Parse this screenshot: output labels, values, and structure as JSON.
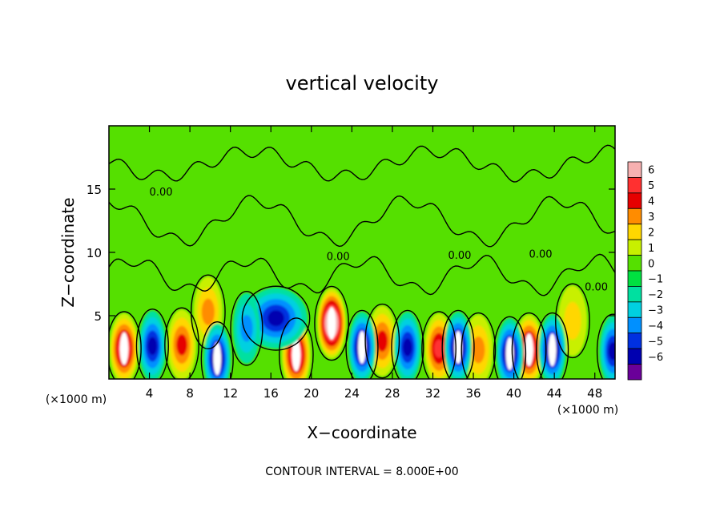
{
  "chart_data": {
    "type": "heatmap",
    "title": "vertical velocity",
    "xlabel": "X−coordinate",
    "ylabel": "Z−coordinate",
    "x_units": "(×1000 m)",
    "y_units": "(×1000 m)",
    "xlim": [
      0,
      50
    ],
    "ylim": [
      0,
      20
    ],
    "x_ticks": [
      "4",
      "8",
      "12",
      "16",
      "20",
      "24",
      "28",
      "32",
      "36",
      "40",
      "44",
      "48"
    ],
    "y_ticks": [
      "5",
      "10",
      "15"
    ],
    "colorbar": {
      "ticks": [
        "6",
        "5",
        "4",
        "3",
        "2",
        "1",
        "0",
        "−1",
        "−2",
        "−3",
        "−4",
        "−5",
        "−6"
      ],
      "range": [
        -6,
        6
      ],
      "colors": [
        "#f7b0b0",
        "#ff3030",
        "#e60000",
        "#ff8c00",
        "#ffd700",
        "#c8f000",
        "#55e000",
        "#00e040",
        "#00e0a0",
        "#00d0e0",
        "#0090ff",
        "#0030e0",
        "#0000b0",
        "#6a0099"
      ]
    },
    "contour_label": "0.00",
    "footnote": "CONTOUR INTERVAL = 8.000E+00",
    "features": [
      {
        "kind": "updraft",
        "x": 1.5,
        "z": 2.4,
        "peak": 6
      },
      {
        "kind": "updraft",
        "x": 7.2,
        "z": 2.7,
        "peak": 4
      },
      {
        "kind": "updraft",
        "x": 9.8,
        "z": 5.3,
        "peak": 3
      },
      {
        "kind": "updraft",
        "x": 18.5,
        "z": 1.9,
        "peak": 6
      },
      {
        "kind": "updraft",
        "x": 22.0,
        "z": 4.4,
        "peak": 8
      },
      {
        "kind": "updraft",
        "x": 27.0,
        "z": 3.0,
        "peak": 4
      },
      {
        "kind": "updraft",
        "x": 32.6,
        "z": 2.4,
        "peak": 5
      },
      {
        "kind": "updraft",
        "x": 36.5,
        "z": 2.3,
        "peak": 3
      },
      {
        "kind": "updraft",
        "x": 41.5,
        "z": 2.3,
        "peak": 6
      },
      {
        "kind": "updraft",
        "x": 45.8,
        "z": 4.6,
        "peak": 2
      },
      {
        "kind": "downdraft",
        "x": 16.5,
        "z": 4.8,
        "peak": -5
      },
      {
        "kind": "downdraft",
        "x": 13.6,
        "z": 4.0,
        "peak": -3
      },
      {
        "kind": "downdraft",
        "x": 4.3,
        "z": 2.6,
        "peak": -5
      },
      {
        "kind": "downdraft",
        "x": 10.7,
        "z": 1.6,
        "peak": -6
      },
      {
        "kind": "downdraft",
        "x": 25.0,
        "z": 2.5,
        "peak": -6
      },
      {
        "kind": "downdraft",
        "x": 29.5,
        "z": 2.5,
        "peak": -5
      },
      {
        "kind": "downdraft",
        "x": 34.5,
        "z": 2.5,
        "peak": -6
      },
      {
        "kind": "downdraft",
        "x": 39.6,
        "z": 2.0,
        "peak": -6
      },
      {
        "kind": "downdraft",
        "x": 43.8,
        "z": 2.3,
        "peak": -6
      },
      {
        "kind": "downdraft",
        "x": 49.8,
        "z": 2.2,
        "peak": -5
      }
    ]
  }
}
